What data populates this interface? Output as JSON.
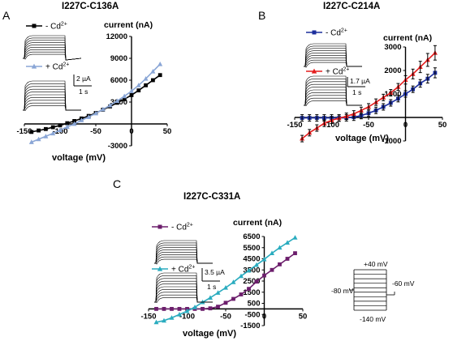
{
  "panels": [
    {
      "letter": "A",
      "title": "I227C-C136A"
    },
    {
      "letter": "B",
      "title": "I227C-C214A"
    },
    {
      "letter": "C",
      "title": "I227C-C331A"
    }
  ],
  "protocol": {
    "top": "+40 mV",
    "hold": "-80 mV",
    "tail": "-60 mV",
    "bottom": "-140 mV"
  },
  "colors": {
    "black": "#000000",
    "blue": "#8aa6d6",
    "navy": "#1c2e9c",
    "red": "#e41d1d",
    "purple": "#6c1e6c",
    "teal": "#2aacbf"
  },
  "chart_data": [
    {
      "type": "line",
      "title": "I227C-C136A",
      "xlabel": "voltage (mV)",
      "ylabel": "current (nA)",
      "xlim": [
        -150,
        50
      ],
      "ylim": [
        -3000,
        12000
      ],
      "x_ticks": [
        "-150",
        "-100",
        "-50",
        "0",
        "50"
      ],
      "y_ticks": [
        "-3000",
        "3000",
        "6000",
        "9000",
        "12000"
      ],
      "legend": [
        "- Cd2+",
        "+ Cd2+"
      ],
      "scale_bar": {
        "amplitude": "2 µA",
        "time": "1 s"
      },
      "series": [
        {
          "name": "- Cd2+",
          "color": "#000000",
          "marker": "square",
          "x": [
            -140,
            -130,
            -120,
            -110,
            -100,
            -90,
            -80,
            -70,
            -60,
            -50,
            -40,
            -30,
            -20,
            -10,
            0,
            10,
            20,
            30,
            40
          ],
          "y": [
            -1100,
            -900,
            -700,
            -450,
            -200,
            100,
            400,
            750,
            1100,
            1500,
            1950,
            2400,
            2900,
            3400,
            3950,
            4600,
            5300,
            6000,
            6700
          ]
        },
        {
          "name": "+ Cd2+",
          "color": "#8aa6d6",
          "marker": "triangle",
          "x": [
            -140,
            -130,
            -120,
            -110,
            -100,
            -90,
            -80,
            -70,
            -60,
            -50,
            -40,
            -30,
            -20,
            -10,
            0,
            10,
            20,
            30,
            40
          ],
          "y": [
            -2500,
            -2100,
            -1700,
            -1300,
            -850,
            -400,
            0,
            500,
            950,
            1450,
            2000,
            2550,
            3150,
            3800,
            4500,
            5300,
            6200,
            7200,
            8200
          ]
        }
      ]
    },
    {
      "type": "line",
      "title": "I227C-C214A",
      "xlabel": "voltage (mV)",
      "ylabel": "current (nA)",
      "xlim": [
        -150,
        50
      ],
      "ylim": [
        -1000,
        3000
      ],
      "x_ticks": [
        "-150",
        "-100",
        "-50",
        "0",
        "50"
      ],
      "y_ticks": [
        "-1000",
        "1000",
        "2000",
        "3000"
      ],
      "legend": [
        "- Cd2+",
        "+ Cd2+"
      ],
      "scale_bar": {
        "amplitude": "1.7 µA",
        "time": "1 s"
      },
      "series": [
        {
          "name": "- Cd2+",
          "color": "#1c2e9c",
          "marker": "square",
          "x": [
            -140,
            -130,
            -120,
            -110,
            -100,
            -90,
            -80,
            -70,
            -60,
            -50,
            -40,
            -30,
            -20,
            -10,
            0,
            10,
            20,
            30,
            40
          ],
          "y": [
            -20,
            -20,
            -20,
            -20,
            -20,
            -20,
            -15,
            10,
            80,
            180,
            300,
            450,
            620,
            800,
            1000,
            1200,
            1450,
            1650,
            1900
          ]
        },
        {
          "name": "+ Cd2+",
          "color": "#e41d1d",
          "marker": "triangle",
          "x": [
            -140,
            -130,
            -120,
            -110,
            -100,
            -90,
            -80,
            -70,
            -60,
            -50,
            -40,
            -30,
            -20,
            -10,
            0,
            10,
            20,
            30,
            40
          ],
          "y": [
            -900,
            -650,
            -450,
            -250,
            -120,
            -30,
            50,
            150,
            300,
            450,
            650,
            850,
            1050,
            1300,
            1600,
            1850,
            2150,
            2450,
            2750
          ]
        }
      ]
    },
    {
      "type": "line",
      "title": "I227C-C331A",
      "xlabel": "voltage (mV)",
      "ylabel": "current (nA)",
      "xlim": [
        -150,
        50
      ],
      "ylim": [
        -1500,
        6500
      ],
      "x_ticks": [
        "-150",
        "-100",
        "-50",
        "0",
        "50"
      ],
      "y_ticks": [
        "-1500",
        "-500",
        "500",
        "1500",
        "2500",
        "3500",
        "4500",
        "5500",
        "6500"
      ],
      "legend": [
        "- Cd2+",
        "+ Cd2+"
      ],
      "scale_bar": {
        "amplitude": "3.5 µA",
        "time": "1 s"
      },
      "series": [
        {
          "name": "- Cd2+",
          "color": "#6c1e6c",
          "marker": "square",
          "x": [
            -140,
            -130,
            -120,
            -110,
            -100,
            -90,
            -80,
            -70,
            -60,
            -50,
            -40,
            -30,
            -20,
            -10,
            0,
            10,
            20,
            30,
            40
          ],
          "y": [
            0,
            0,
            0,
            0,
            0,
            0,
            0,
            50,
            200,
            550,
            900,
            1300,
            1800,
            2450,
            3000,
            3500,
            4000,
            4500,
            5000
          ]
        },
        {
          "name": "+ Cd2+",
          "color": "#2aacbf",
          "marker": "triangle",
          "x": [
            -140,
            -130,
            -120,
            -110,
            -100,
            -90,
            -80,
            -70,
            -60,
            -50,
            -40,
            -30,
            -20,
            -10,
            0,
            10,
            20,
            30,
            40
          ],
          "y": [
            -1200,
            -1050,
            -800,
            -500,
            -200,
            150,
            600,
            1000,
            1450,
            1900,
            2400,
            2950,
            3450,
            3950,
            4450,
            5000,
            5500,
            5950,
            6400
          ]
        }
      ]
    }
  ]
}
